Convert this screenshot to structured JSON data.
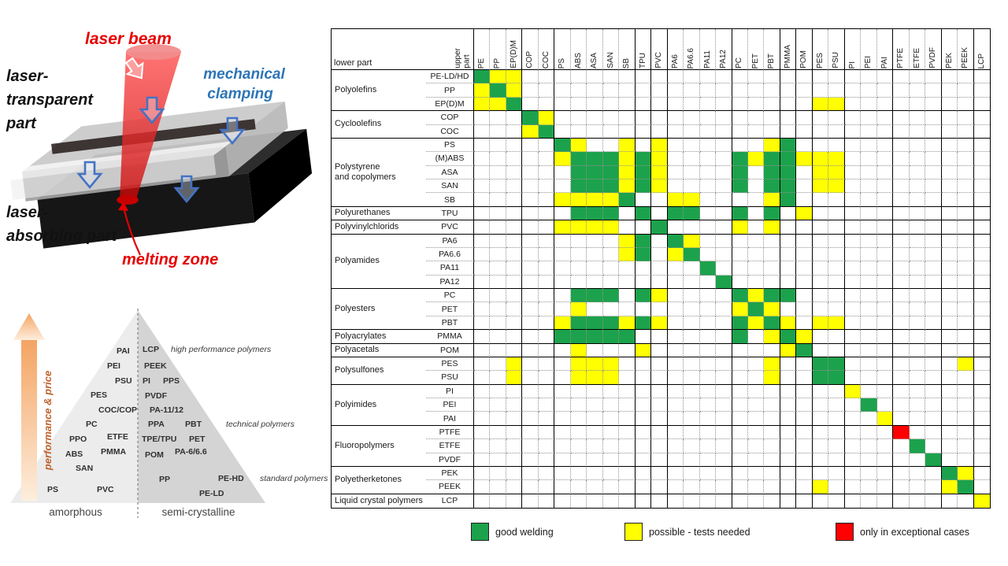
{
  "laser_diagram": {
    "labels": {
      "laser_beam": "laser beam",
      "clamping_line1": "mechanical",
      "clamping_line2": "clamping",
      "transparent_line1": "laser-",
      "transparent_line2": "transparent",
      "transparent_line3": "part",
      "absorbing_line1": "laser-",
      "absorbing_line2": "absorbing part",
      "melting_zone": "melting zone"
    },
    "colors": {
      "laser_red": "#e60000",
      "clamp_blue": "#2e75b6"
    }
  },
  "pyramid": {
    "axis_label": "performance & price",
    "tier_labels": [
      "high performance polymers",
      "technical polymers",
      "standard polymers"
    ],
    "bottom_left": "amorphous",
    "bottom_right": "semi-crystalline",
    "left_labels": [
      "PAI",
      "PEI",
      "PSU",
      "PES",
      "COC/COP",
      "PC",
      "PPO",
      "ETFE",
      "ABS",
      "PMMA",
      "SAN",
      "PS",
      "PVC"
    ],
    "right_labels": [
      "LCP",
      "PEEK",
      "PI",
      "PPS",
      "PVDF",
      "PA-11/12",
      "PPA",
      "PBT",
      "TPE/TPU",
      "PET",
      "POM",
      "PA-6/6.6",
      "PP",
      "PE-HD",
      "PE-LD"
    ]
  },
  "matrix": {
    "corner": {
      "lower_part": "lower part",
      "upper_part": "upper\npart"
    },
    "columns": [
      "PE",
      "PP",
      "EP(D)M",
      "COP",
      "COC",
      "PS",
      "ABS",
      "ASA",
      "SAN",
      "SB",
      "TPU",
      "PVC",
      "PA6",
      "PA6.6",
      "PA11",
      "PA12",
      "PC",
      "PET",
      "PBT",
      "PMMA",
      "POM",
      "PES",
      "PSU",
      "PI",
      "PEI",
      "PAI",
      "PTFE",
      "ETFE",
      "PVDF",
      "PEK",
      "PEEK",
      "LCP"
    ],
    "col_group_sizes": [
      3,
      2,
      5,
      1,
      1,
      4,
      3,
      1,
      1,
      2,
      3,
      3,
      2,
      1
    ],
    "groups": [
      {
        "name": "Polyolefins",
        "rows": 3
      },
      {
        "name": "Cycloolefins",
        "rows": 2
      },
      {
        "name": "Polystyrene\nand copolymers",
        "rows": 5
      },
      {
        "name": "Polyurethanes",
        "rows": 1
      },
      {
        "name": "Polyvinylchlorids",
        "rows": 1
      },
      {
        "name": "Polyamides",
        "rows": 4
      },
      {
        "name": "Polyesters",
        "rows": 3
      },
      {
        "name": "Polyacrylates",
        "rows": 1
      },
      {
        "name": "Polyacetals",
        "rows": 1
      },
      {
        "name": "Polysulfones",
        "rows": 2
      },
      {
        "name": "Polyimides",
        "rows": 3
      },
      {
        "name": "Fluoropolymers",
        "rows": 3
      },
      {
        "name": "Polyetherketones",
        "rows": 2
      },
      {
        "name": "Liquid crystal polymers",
        "rows": 1
      }
    ],
    "rows": [
      {
        "label": "PE-LD/HD",
        "cells": {
          "0": "g",
          "1": "y",
          "2": "y"
        }
      },
      {
        "label": "PP",
        "cells": {
          "0": "y",
          "1": "g",
          "2": "y"
        }
      },
      {
        "label": "EP(D)M",
        "cells": {
          "0": "y",
          "1": "y",
          "2": "g",
          "21": "y",
          "22": "y"
        }
      },
      {
        "label": "COP",
        "cells": {
          "3": "g",
          "4": "y"
        }
      },
      {
        "label": "COC",
        "cells": {
          "3": "y",
          "4": "g"
        }
      },
      {
        "label": "PS",
        "cells": {
          "5": "g",
          "6": "y",
          "9": "y",
          "11": "y",
          "18": "y",
          "19": "g"
        }
      },
      {
        "label": "(M)ABS",
        "cells": {
          "5": "y",
          "6": "g",
          "7": "g",
          "8": "g",
          "9": "y",
          "10": "g",
          "11": "y",
          "16": "g",
          "17": "y",
          "18": "g",
          "19": "g",
          "20": "y",
          "21": "y",
          "22": "y"
        }
      },
      {
        "label": "ASA",
        "cells": {
          "6": "g",
          "7": "g",
          "8": "g",
          "9": "y",
          "10": "g",
          "11": "y",
          "16": "g",
          "18": "g",
          "19": "g",
          "21": "y",
          "22": "y"
        }
      },
      {
        "label": "SAN",
        "cells": {
          "6": "g",
          "7": "g",
          "8": "g",
          "9": "y",
          "10": "g",
          "11": "y",
          "16": "g",
          "18": "g",
          "19": "g",
          "21": "y",
          "22": "y"
        }
      },
      {
        "label": "SB",
        "cells": {
          "5": "y",
          "6": "y",
          "7": "y",
          "8": "y",
          "9": "g",
          "12": "y",
          "13": "y",
          "18": "y",
          "19": "g"
        }
      },
      {
        "label": "TPU",
        "cells": {
          "6": "g",
          "7": "g",
          "8": "g",
          "10": "g",
          "12": "g",
          "13": "g",
          "16": "g",
          "18": "g",
          "20": "y"
        }
      },
      {
        "label": "PVC",
        "cells": {
          "5": "y",
          "6": "y",
          "7": "y",
          "8": "y",
          "11": "g",
          "16": "y",
          "18": "y"
        }
      },
      {
        "label": "PA6",
        "cells": {
          "9": "y",
          "10": "g",
          "12": "g",
          "13": "y"
        }
      },
      {
        "label": "PA6.6",
        "cells": {
          "9": "y",
          "10": "g",
          "12": "y",
          "13": "g"
        }
      },
      {
        "label": "PA11",
        "cells": {
          "14": "g"
        }
      },
      {
        "label": "PA12",
        "cells": {
          "15": "g"
        }
      },
      {
        "label": "PC",
        "cells": {
          "6": "g",
          "7": "g",
          "8": "g",
          "10": "g",
          "11": "y",
          "16": "g",
          "17": "y",
          "18": "g",
          "19": "g"
        }
      },
      {
        "label": "PET",
        "cells": {
          "6": "y",
          "16": "y",
          "17": "g",
          "18": "y"
        }
      },
      {
        "label": "PBT",
        "cells": {
          "5": "y",
          "6": "g",
          "7": "g",
          "8": "g",
          "9": "y",
          "10": "g",
          "11": "y",
          "16": "g",
          "17": "y",
          "18": "g",
          "19": "y",
          "21": "y",
          "22": "y"
        }
      },
      {
        "label": "PMMA",
        "cells": {
          "5": "g",
          "6": "g",
          "7": "g",
          "8": "g",
          "9": "g",
          "16": "g",
          "18": "y",
          "19": "g",
          "20": "y"
        }
      },
      {
        "label": "POM",
        "cells": {
          "6": "y",
          "10": "y",
          "19": "y",
          "20": "g"
        }
      },
      {
        "label": "PES",
        "cells": {
          "2": "y",
          "6": "y",
          "7": "y",
          "8": "y",
          "18": "y",
          "21": "g",
          "22": "g",
          "30": "y"
        }
      },
      {
        "label": "PSU",
        "cells": {
          "2": "y",
          "6": "y",
          "7": "y",
          "8": "y",
          "18": "y",
          "21": "g",
          "22": "g"
        }
      },
      {
        "label": "PI",
        "cells": {
          "23": "y"
        }
      },
      {
        "label": "PEI",
        "cells": {
          "24": "g"
        }
      },
      {
        "label": "PAI",
        "cells": {
          "25": "y"
        }
      },
      {
        "label": "PTFE",
        "cells": {
          "26": "r"
        }
      },
      {
        "label": "ETFE",
        "cells": {
          "27": "g"
        }
      },
      {
        "label": "PVDF",
        "cells": {
          "28": "g"
        }
      },
      {
        "label": "PEK",
        "cells": {
          "29": "g",
          "30": "y"
        }
      },
      {
        "label": "PEEK",
        "cells": {
          "21": "y",
          "29": "y",
          "30": "g"
        }
      },
      {
        "label": "LCP",
        "cells": {
          "31": "y"
        }
      }
    ],
    "colors": {
      "g": "#1ca24c",
      "y": "#ffff00",
      "r": "#fe0000"
    }
  },
  "legend": [
    {
      "key": "g",
      "label": "good welding"
    },
    {
      "key": "y",
      "label": "possible - tests needed"
    },
    {
      "key": "r",
      "label": "only in exceptional cases"
    }
  ]
}
